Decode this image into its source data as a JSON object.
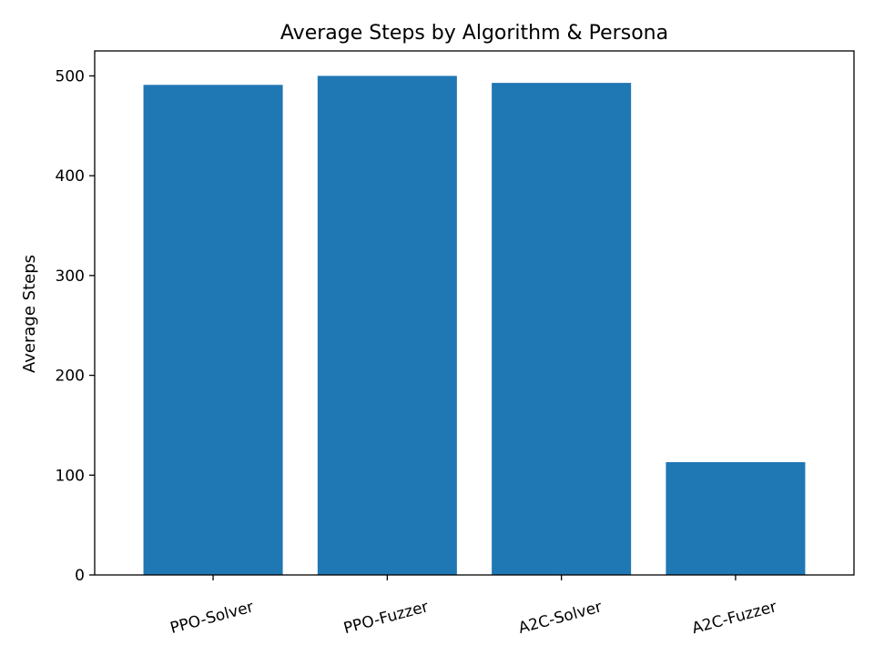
{
  "chart_data": {
    "type": "bar",
    "title": "Average Steps by Algorithm & Persona",
    "xlabel": "",
    "ylabel": "Average Steps",
    "categories": [
      "PPO-Solver",
      "PPO-Fuzzer",
      "A2C-Solver",
      "A2C-Fuzzer"
    ],
    "values": [
      491,
      500,
      493,
      113
    ],
    "ylim": [
      0,
      525
    ],
    "yticks": [
      0,
      100,
      200,
      300,
      400,
      500
    ],
    "bar_color": "#1f77b4",
    "grid": false
  }
}
